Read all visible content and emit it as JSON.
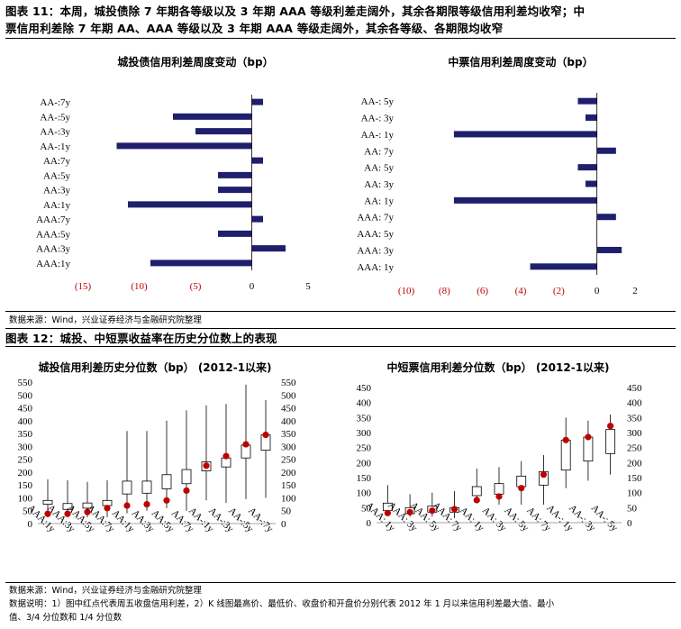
{
  "header1": {
    "line1": "图表 11：本周，城投债除 7 年期各等级以及 3 年期 AAA 等级利差走阔外，其余各期限等级信用利差均收窄；中",
    "line2": "票信用利差除 7 年期 AA、AAA 等级以及 3 年期 AAA 等级走阔外，其余各等级、各期限均收窄"
  },
  "source1": "数据来源：Wind，兴业证券经济与金融研究院整理",
  "header2": "图表 12：城投、中短票收益率在历史分位数上的表现",
  "source2": "数据来源：Wind，兴业证券经济与金融研究院整理",
  "note": {
    "line1": "数据说明：1）图中红点代表周五收盘信用利差，2）K 线图最高价、最低价、收盘价和开盘价分别代表 2012 年 1 月以来信用利差最大值、最小",
    "line2": "值、3/4 分位数和 1/4 分位数"
  },
  "colors": {
    "bar": "#1f1f6e",
    "dot": "#c00000",
    "negative_tick": "#c00000"
  },
  "chart_data": [
    {
      "type": "bar",
      "orientation": "horizontal",
      "title": "城投债信用利差周度变动（bp）",
      "categories": [
        "AA-:7y",
        "AA-:5y",
        "AA-:3y",
        "AA-:1y",
        "AA:7y",
        "AA:5y",
        "AA:3y",
        "AA:1y",
        "AAA:7y",
        "AAA:5y",
        "AAA:3y",
        "AAA:1y"
      ],
      "values": [
        1,
        -7,
        -5,
        -12,
        1,
        -3,
        -3,
        -11,
        1,
        -3,
        3,
        -9
      ],
      "xlim": [
        -15,
        5
      ],
      "xticks": [
        "(15)",
        "(10)",
        "(5)",
        "0",
        "5"
      ]
    },
    {
      "type": "bar",
      "orientation": "horizontal",
      "title": "中票信用利差周度变动（bp）",
      "categories": [
        "AA-: 5y",
        "AA-: 3y",
        "AA-: 1y",
        "AA: 7y",
        "AA: 5y",
        "AA: 3y",
        "AA: 1y",
        "AAA: 7y",
        "AAA: 5y",
        "AAA: 3y",
        "AAA: 1y"
      ],
      "values": [
        -1,
        -0.6,
        -7.5,
        1,
        -1,
        -0.6,
        -7.5,
        1,
        0,
        1.3,
        -3.5
      ],
      "xlim": [
        -10,
        2
      ],
      "xticks": [
        "(10)",
        "(8)",
        "(6)",
        "(4)",
        "(2)",
        "0",
        "2"
      ]
    },
    {
      "type": "candlestick",
      "title": "城投信用利差历史分位数（bp）  (2012-1以来)",
      "categories": [
        "AAA:1y",
        "AAA:3y",
        "AAA:5y",
        "AAA:7y",
        "AA:1y",
        "AA:3y",
        "AA:5y",
        "AA:7y",
        "AA-:1y",
        "AA-:3y",
        "AA-:5y",
        "AA-:7y"
      ],
      "max": [
        172,
        168,
        162,
        168,
        360,
        360,
        400,
        440,
        460,
        465,
        540,
        480
      ],
      "min": [
        25,
        25,
        25,
        25,
        40,
        50,
        60,
        50,
        90,
        80,
        95,
        100
      ],
      "q3": [
        90,
        78,
        80,
        90,
        165,
        165,
        190,
        210,
        240,
        255,
        305,
        345
      ],
      "q1": [
        75,
        55,
        60,
        70,
        115,
        118,
        135,
        155,
        205,
        220,
        255,
        285
      ],
      "close": [
        38,
        38,
        45,
        60,
        70,
        75,
        90,
        128,
        225,
        262,
        308,
        345
      ],
      "ylim": [
        0,
        550
      ],
      "yticks": [
        0,
        50,
        100,
        150,
        200,
        250,
        300,
        350,
        400,
        450,
        500,
        550
      ]
    },
    {
      "type": "candlestick",
      "title": "中短票信用利差分位数（bp）  (2012-1以来)",
      "categories": [
        "AAA: 1y",
        "AAA: 3y",
        "AAA: 5y",
        "AAA: 7y",
        "AA: 1y",
        "AA: 3y",
        "AA: 5y",
        "AA: 7y",
        "AA-: 1y",
        "AA-: 3y",
        "AA-: 5y"
      ],
      "max": [
        125,
        95,
        100,
        105,
        180,
        185,
        205,
        225,
        350,
        340,
        360
      ],
      "min": [
        25,
        20,
        20,
        15,
        70,
        60,
        60,
        60,
        115,
        140,
        160
      ],
      "q3": [
        65,
        50,
        55,
        50,
        120,
        130,
        155,
        170,
        275,
        285,
        310
      ],
      "q1": [
        40,
        30,
        35,
        35,
        90,
        95,
        120,
        125,
        175,
        205,
        230
      ],
      "close": [
        32,
        35,
        40,
        45,
        75,
        87,
        115,
        160,
        275,
        285,
        322
      ],
      "ylim": [
        0,
        450
      ],
      "yticks": [
        0,
        50,
        100,
        150,
        200,
        250,
        300,
        350,
        400,
        450
      ]
    }
  ]
}
